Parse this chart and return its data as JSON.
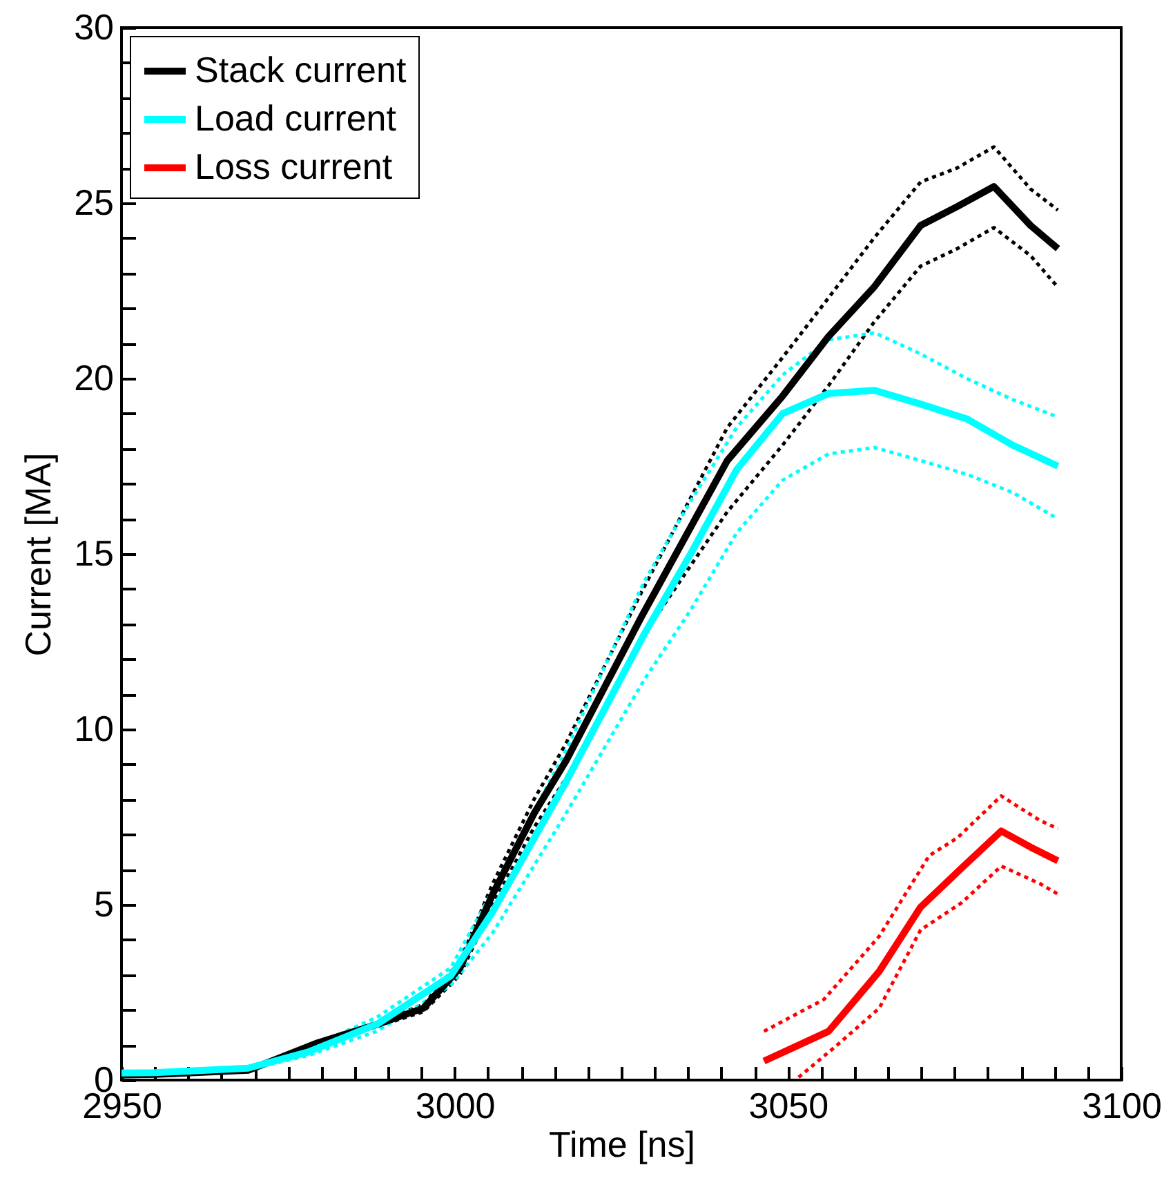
{
  "chart_data": {
    "type": "line",
    "xlabel": "Time [ns]",
    "ylabel": "Current [MA]",
    "xlim": [
      2950,
      3100
    ],
    "ylim": [
      0,
      30
    ],
    "xticks": [
      2950,
      {
        "value": 2955,
        "label": null
      },
      {
        "value": 2960,
        "label": null
      },
      {
        "value": 2965,
        "label": null
      },
      {
        "value": 2970,
        "label": null
      },
      {
        "value": 2975,
        "label": null
      },
      {
        "value": 2980,
        "label": null
      },
      {
        "value": 2985,
        "label": null
      },
      {
        "value": 2990,
        "label": null
      },
      {
        "value": 2995,
        "label": null
      },
      3000,
      {
        "value": 3005,
        "label": null
      },
      {
        "value": 3010,
        "label": null
      },
      {
        "value": 3015,
        "label": null
      },
      {
        "value": 3020,
        "label": null
      },
      {
        "value": 3025,
        "label": null
      },
      {
        "value": 3030,
        "label": null
      },
      {
        "value": 3035,
        "label": null
      },
      {
        "value": 3040,
        "label": null
      },
      {
        "value": 3045,
        "label": null
      },
      3050,
      {
        "value": 3055,
        "label": null
      },
      {
        "value": 3060,
        "label": null
      },
      {
        "value": 3065,
        "label": null
      },
      {
        "value": 3070,
        "label": null
      },
      {
        "value": 3075,
        "label": null
      },
      {
        "value": 3080,
        "label": null
      },
      {
        "value": 3085,
        "label": null
      },
      {
        "value": 3090,
        "label": null
      },
      {
        "value": 3095,
        "label": null
      },
      3100
    ],
    "yticks": [
      0,
      {
        "value": 1,
        "label": null
      },
      {
        "value": 2,
        "label": null
      },
      {
        "value": 3,
        "label": null
      },
      {
        "value": 4,
        "label": null
      },
      5,
      {
        "value": 6,
        "label": null
      },
      {
        "value": 7,
        "label": null
      },
      {
        "value": 8,
        "label": null
      },
      {
        "value": 9,
        "label": null
      },
      10,
      {
        "value": 11,
        "label": null
      },
      {
        "value": 12,
        "label": null
      },
      {
        "value": 13,
        "label": null
      },
      {
        "value": 14,
        "label": null
      },
      15,
      {
        "value": 16,
        "label": null
      },
      {
        "value": 17,
        "label": null
      },
      {
        "value": 18,
        "label": null
      },
      {
        "value": 19,
        "label": null
      },
      20,
      {
        "value": 21,
        "label": null
      },
      {
        "value": 22,
        "label": null
      },
      {
        "value": 23,
        "label": null
      },
      {
        "value": 24,
        "label": null
      },
      25,
      {
        "value": 26,
        "label": null
      },
      {
        "value": 27,
        "label": null
      },
      {
        "value": 28,
        "label": null
      },
      {
        "value": 29,
        "label": null
      },
      30
    ],
    "grid": false,
    "legend": "top left",
    "marker": "none",
    "series": [
      {
        "color": "#000000",
        "line_style": "dotted",
        "x": [
          2950,
          2955,
          2969,
          2979.4,
          2988.4,
          2995.3,
          3000.8,
          3005.7,
          3011.9,
          3016.7,
          3028,
          3040.9,
          3049.2,
          3056.1,
          3062.9,
          3069.9,
          3075.4,
          3080.9,
          3086.4,
          3090.5
        ],
        "values": [
          0.15,
          0.17,
          0.3,
          1.1,
          1.65,
          2.15,
          3.4,
          5.6,
          8.0,
          9.6,
          13.9,
          18.6,
          20.6,
          22.3,
          24.0,
          25.6,
          26.0,
          26.6,
          25.4,
          24.8
        ]
      },
      {
        "color": "#000000",
        "line_style": "dotted",
        "x": [
          2950,
          2955,
          2969,
          2979.4,
          2988.4,
          2995.3,
          3000.8,
          3005.7,
          3011.9,
          3016.7,
          3028,
          3040.9,
          3049.2,
          3056.1,
          3062.9,
          3069.9,
          3075.4,
          3080.9,
          3086.4,
          3090.5
        ],
        "values": [
          0.14,
          0.15,
          0.26,
          1.0,
          1.53,
          1.95,
          3.0,
          5.0,
          7.2,
          8.6,
          12.6,
          16.2,
          18.1,
          19.8,
          21.6,
          23.2,
          23.7,
          24.3,
          23.5,
          22.6
        ]
      },
      {
        "color": "#00ffff",
        "line_style": "dotted",
        "x": [
          2950,
          2955,
          2969,
          2978,
          2988.4,
          2999.4,
          3005.7,
          3016.7,
          3028.4,
          3035.4,
          3042.3,
          3049.2,
          3056.1,
          3063,
          3069.9,
          3076.8,
          3083.7,
          3090.5
        ],
        "values": [
          0.22,
          0.23,
          0.38,
          0.9,
          1.8,
          3.2,
          5.4,
          9.4,
          14.2,
          16.5,
          18.6,
          20.1,
          21.1,
          21.3,
          20.7,
          20.0,
          19.4,
          18.9
        ]
      },
      {
        "color": "#00ffff",
        "line_style": "dotted",
        "x": [
          2950,
          2955,
          2969,
          2978,
          2988.4,
          2999.4,
          3005.7,
          3016.7,
          3028.4,
          3035.4,
          3042.3,
          3049.2,
          3056.1,
          3063,
          3069.9,
          3076.8,
          3083.7,
          3090.5
        ],
        "values": [
          0.18,
          0.19,
          0.3,
          0.7,
          1.4,
          2.7,
          4.2,
          7.6,
          11.4,
          13.4,
          15.6,
          17.1,
          17.85,
          18.03,
          17.66,
          17.27,
          16.75,
          16.0
        ]
      },
      {
        "color": "#ff0000",
        "line_style": "dotted",
        "x": [
          3046.4,
          3055.4,
          3063.7,
          3071.2,
          3075.4,
          3082,
          3087.8,
          3090.5
        ],
        "values": [
          1.39,
          2.3,
          4.1,
          6.4,
          6.9,
          8.1,
          7.4,
          7.17
        ]
      },
      {
        "color": "#ff0000",
        "line_style": "dotted",
        "x": [
          3051.6,
          3057.4,
          3063.7,
          3069.9,
          3076.1,
          3082,
          3087.8,
          3090.5
        ],
        "values": [
          0.08,
          1.0,
          2.05,
          4.28,
          5.06,
          6.1,
          5.6,
          5.3
        ]
      },
      {
        "name": "Stack current",
        "color": "#000000",
        "line_style": "solid",
        "x": [
          2950,
          2955,
          2969,
          2979.4,
          2988.4,
          2995.3,
          3000.8,
          3005.7,
          3011.9,
          3016.7,
          3028,
          3040.9,
          3049.2,
          3056.1,
          3062.9,
          3069.9,
          3075.4,
          3080.9,
          3086.4,
          3090.5
        ],
        "values": [
          0.15,
          0.16,
          0.28,
          1.06,
          1.59,
          2.05,
          3.2,
          5.3,
          7.6,
          9.1,
          13.2,
          17.66,
          19.5,
          21.2,
          22.6,
          24.36,
          24.9,
          25.47,
          24.36,
          23.7
        ]
      },
      {
        "name": "Load current",
        "color": "#00ffff",
        "line_style": "solid",
        "x": [
          2950,
          2955,
          2969,
          2978,
          2988.4,
          2999.4,
          3005.7,
          3016.7,
          3028.4,
          3035.4,
          3042.3,
          3049.2,
          3056.1,
          3063,
          3069.9,
          3076.8,
          3083.7,
          3090.5
        ],
        "values": [
          0.2,
          0.21,
          0.34,
          0.8,
          1.6,
          2.97,
          4.8,
          8.5,
          12.7,
          15.0,
          17.4,
          19.0,
          19.57,
          19.66,
          19.27,
          18.85,
          18.1,
          17.5
        ]
      },
      {
        "name": "Loss current",
        "color": "#ff0000",
        "line_style": "solid",
        "x": [
          3046.4,
          3056.1,
          3063.7,
          3069.9,
          3076.1,
          3082,
          3086.4,
          3090.5
        ],
        "values": [
          0.54,
          1.39,
          3.1,
          4.93,
          6.05,
          7.1,
          6.64,
          6.25
        ]
      }
    ]
  }
}
